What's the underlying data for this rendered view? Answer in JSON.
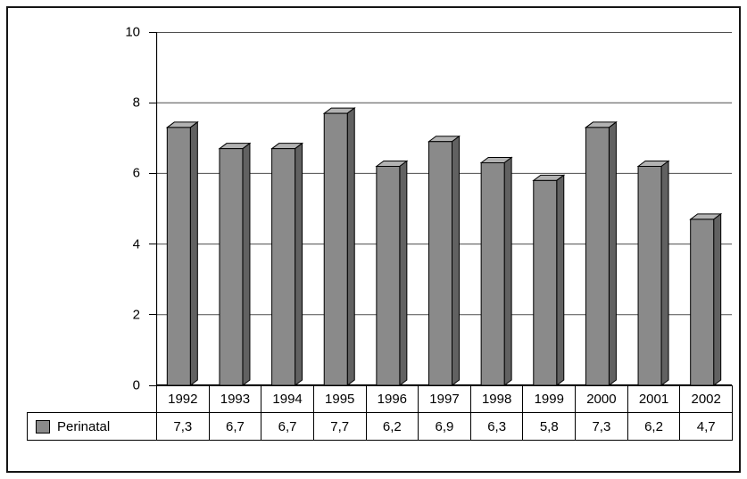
{
  "chart_data": {
    "type": "bar",
    "title": "",
    "categories": [
      "1992",
      "1993",
      "1994",
      "1995",
      "1996",
      "1997",
      "1998",
      "1999",
      "2000",
      "2001",
      "2002"
    ],
    "series": [
      {
        "name": "Perinatal",
        "values": [
          7.3,
          6.7,
          6.7,
          7.7,
          6.2,
          6.9,
          6.3,
          5.8,
          7.3,
          6.2,
          4.7
        ]
      }
    ],
    "value_labels": [
      "7,3",
      "6,7",
      "6,7",
      "7,7",
      "6,2",
      "6,9",
      "6,3",
      "5,8",
      "7,3",
      "6,2",
      "4,7"
    ],
    "xlabel": "",
    "ylabel": "",
    "ylim": [
      0,
      10
    ],
    "yticks": [
      0,
      2,
      4,
      6,
      8,
      10
    ],
    "grid": true,
    "legend_position": "bottom-left",
    "style": "3d-extruded-bars",
    "bar_color": "#8a8a8a",
    "bar_top_color": "#b2b2b2",
    "bar_side_color": "#616161",
    "grid_color": "#4d4d4d",
    "axis_color": "#000000"
  },
  "legend": {
    "label": "Perinatal"
  }
}
